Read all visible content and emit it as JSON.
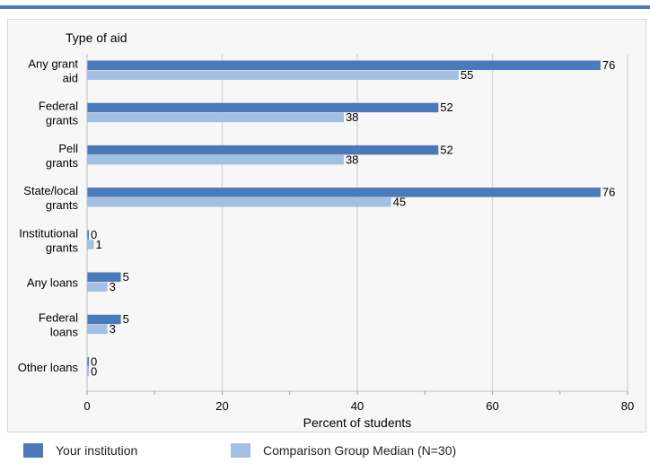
{
  "colors": {
    "series_primary": "#4a7ab9",
    "series_secondary": "#a3bfe3",
    "grid": "#d9d9d9",
    "panel_bg": "#f7f7f7"
  },
  "chart_data": {
    "type": "bar",
    "orientation": "horizontal",
    "title": "",
    "ylabel": "Type of aid",
    "xlabel": "Percent of students",
    "xlim": [
      0,
      80
    ],
    "xticks": [
      0,
      20,
      40,
      60,
      80
    ],
    "grid": true,
    "legend_position": "bottom",
    "categories": [
      [
        "Any grant",
        "aid"
      ],
      [
        "Federal",
        "grants"
      ],
      [
        "Pell",
        "grants"
      ],
      [
        "State/local",
        "grants"
      ],
      [
        "Institutional",
        "grants"
      ],
      [
        "Any loans"
      ],
      [
        "Federal",
        "loans"
      ],
      [
        "Other loans"
      ]
    ],
    "series": [
      {
        "name": "Your institution",
        "values": [
          76,
          52,
          52,
          76,
          0,
          5,
          5,
          0
        ]
      },
      {
        "name": "Comparison Group Median (N=30)",
        "values": [
          55,
          38,
          38,
          45,
          1,
          3,
          3,
          0
        ]
      }
    ]
  }
}
